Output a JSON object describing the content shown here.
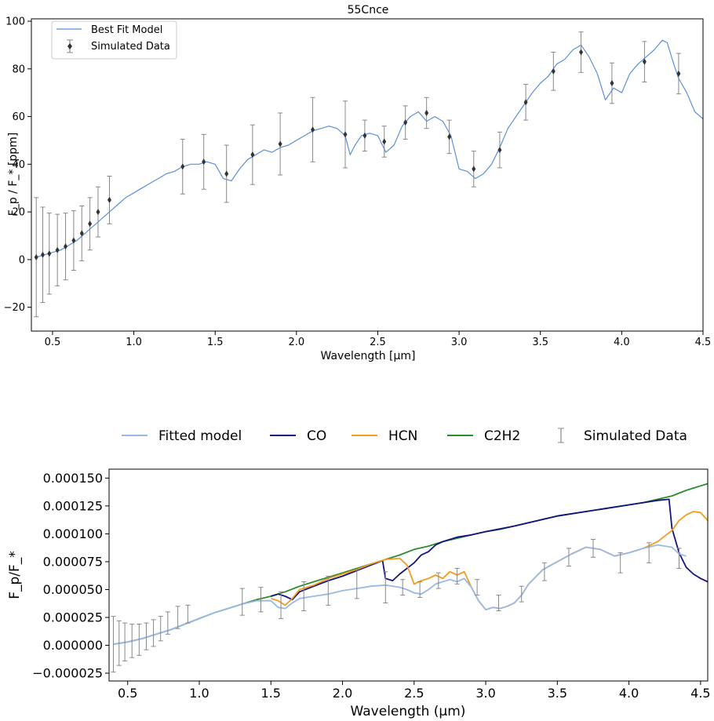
{
  "chart_data": [
    {
      "type": "line",
      "title": "55Cnce",
      "xlabel": "Wavelength [μm]",
      "ylabel": "F_p / F_* [ppm]",
      "xlim": [
        0.37,
        4.5
      ],
      "ylim": [
        -30,
        101
      ],
      "x_ticks": [
        "0.5",
        "1.0",
        "1.5",
        "2.0",
        "2.5",
        "3.0",
        "3.5",
        "4.0",
        "4.5"
      ],
      "y_ticks": [
        "−20",
        "0",
        "20",
        "40",
        "60",
        "80",
        "100"
      ],
      "legend": {
        "placement": "top-left",
        "entries": [
          "Best Fit Model",
          "Simulated Data"
        ]
      },
      "colors": {
        "model": "#5b8fd9",
        "data": "#333333",
        "errorbar": "#888888"
      },
      "series": [
        {
          "name": "Best Fit Model",
          "x": [
            0.4,
            0.45,
            0.5,
            0.55,
            0.6,
            0.65,
            0.7,
            0.75,
            0.8,
            0.85,
            0.9,
            0.95,
            1.0,
            1.05,
            1.1,
            1.15,
            1.2,
            1.25,
            1.3,
            1.35,
            1.4,
            1.45,
            1.5,
            1.55,
            1.6,
            1.65,
            1.7,
            1.75,
            1.8,
            1.85,
            1.9,
            1.95,
            2.0,
            2.05,
            2.1,
            2.15,
            2.2,
            2.25,
            2.3,
            2.33,
            2.36,
            2.4,
            2.45,
            2.5,
            2.55,
            2.6,
            2.65,
            2.7,
            2.75,
            2.8,
            2.85,
            2.9,
            2.95,
            3.0,
            3.05,
            3.1,
            3.15,
            3.2,
            3.25,
            3.3,
            3.35,
            3.4,
            3.45,
            3.5,
            3.55,
            3.6,
            3.65,
            3.7,
            3.75,
            3.8,
            3.85,
            3.9,
            3.95,
            4.0,
            4.05,
            4.1,
            4.15,
            4.2,
            4.25,
            4.28,
            4.32,
            4.35,
            4.4,
            4.45,
            4.5
          ],
          "y": [
            1,
            2,
            3,
            4,
            6,
            8,
            11,
            14,
            17,
            20,
            23,
            26,
            28,
            30,
            32,
            34,
            36,
            37,
            39,
            40,
            40,
            41,
            40,
            34,
            33,
            38,
            42,
            44,
            46,
            45,
            47,
            48,
            50,
            52,
            54,
            55,
            56,
            55,
            52,
            44,
            48,
            52,
            53,
            52,
            45,
            48,
            56,
            60,
            62,
            58,
            60,
            58,
            52,
            38,
            37,
            34,
            36,
            40,
            47,
            55,
            60,
            65,
            70,
            74,
            77,
            82,
            84,
            88,
            90,
            85,
            78,
            67,
            72,
            70,
            78,
            82,
            85,
            88,
            92,
            91,
            82,
            76,
            70,
            62,
            59
          ]
        },
        {
          "name": "Simulated Data",
          "x": [
            0.4,
            0.44,
            0.48,
            0.53,
            0.58,
            0.63,
            0.68,
            0.73,
            0.78,
            0.85,
            1.3,
            1.43,
            1.57,
            1.73,
            1.9,
            2.1,
            2.3,
            2.42,
            2.54,
            2.67,
            2.8,
            2.94,
            3.09,
            3.25,
            3.41,
            3.58,
            3.75,
            3.94,
            4.14,
            4.35
          ],
          "y": [
            1,
            2,
            2.5,
            4,
            5.5,
            8,
            11,
            15,
            20,
            25,
            39,
            41,
            36,
            44,
            48.5,
            54.5,
            52.5,
            52,
            49.5,
            57.5,
            61.5,
            51.5,
            38,
            46,
            66,
            79,
            87,
            74,
            83,
            78
          ],
          "yerr": [
            25,
            20,
            17,
            15,
            14,
            12.5,
            11.5,
            11,
            10.5,
            10,
            11.5,
            11.5,
            12,
            12.5,
            13,
            13.5,
            14,
            6.5,
            6.5,
            7,
            6.5,
            7,
            7.5,
            7.5,
            7.5,
            8,
            8.5,
            8.5,
            8.5,
            8.5
          ]
        }
      ]
    },
    {
      "type": "line",
      "title": "",
      "xlabel": "Wavelength (μm)",
      "ylabel": "F_p/F_*",
      "xlim": [
        0.37,
        4.55
      ],
      "ylim": [
        -3.2e-05,
        0.000158
      ],
      "x_ticks": [
        "0.5",
        "1.0",
        "1.5",
        "2.0",
        "2.5",
        "3.0",
        "3.5",
        "4.0",
        "4.5"
      ],
      "y_ticks": [
        "−0.000025",
        "0.000000",
        "0.000025",
        "0.000050",
        "0.000075",
        "0.000100",
        "0.000125",
        "0.000150"
      ],
      "legend": {
        "placement": "top-outside",
        "entries": [
          "Fitted model",
          "CO",
          "HCN",
          "C2H2",
          "Simulated Data"
        ]
      },
      "colors": {
        "fitted": "#9ab8e8",
        "co": "#141480",
        "hcn": "#f39c1f",
        "c2h2": "#2e8b2e",
        "errorbar": "#888888"
      },
      "series": [
        {
          "name": "C2H2",
          "x": [
            0.4,
            0.5,
            0.6,
            0.7,
            0.8,
            0.9,
            1.0,
            1.1,
            1.2,
            1.3,
            1.4,
            1.5,
            1.6,
            1.7,
            1.8,
            1.9,
            2.0,
            2.1,
            2.2,
            2.3,
            2.4,
            2.5,
            2.6,
            2.7,
            2.8,
            2.9,
            3.0,
            3.1,
            3.2,
            3.3,
            3.4,
            3.5,
            3.6,
            3.7,
            3.8,
            3.9,
            4.0,
            4.1,
            4.2,
            4.3,
            4.4,
            4.5,
            4.55
          ],
          "y": [
            1e-06,
            3e-06,
            6e-06,
            1e-05,
            1.4e-05,
            1.9e-05,
            2.4e-05,
            2.9e-05,
            3.3e-05,
            3.7e-05,
            4.1e-05,
            4.4e-05,
            4.8e-05,
            5.3e-05,
            5.7e-05,
            6.1e-05,
            6.5e-05,
            6.9e-05,
            7.3e-05,
            7.7e-05,
            8.1e-05,
            8.6e-05,
            8.9e-05,
            9.3e-05,
            9.6e-05,
            9.9e-05,
            0.000102,
            0.000104,
            0.000107,
            0.00011,
            0.000113,
            0.000116,
            0.000118,
            0.00012,
            0.000122,
            0.000124,
            0.000126,
            0.000128,
            0.000131,
            0.000134,
            0.000139,
            0.000143,
            0.000145
          ]
        },
        {
          "name": "CO",
          "x": [
            1.5,
            1.55,
            1.6,
            1.65,
            1.7,
            1.8,
            1.9,
            2.0,
            2.1,
            2.2,
            2.28,
            2.3,
            2.35,
            2.4,
            2.45,
            2.5,
            2.55,
            2.6,
            2.65,
            2.7,
            2.8,
            2.9,
            3.0,
            3.2,
            3.5,
            3.8,
            4.0,
            4.2,
            4.28,
            4.3,
            4.35,
            4.4,
            4.45,
            4.5,
            4.55
          ],
          "y": [
            4.4e-05,
            4.6e-05,
            4.4e-05,
            4.1e-05,
            4.8e-05,
            5.3e-05,
            5.8e-05,
            6.2e-05,
            6.7e-05,
            7.2e-05,
            7.6e-05,
            6e-05,
            5.8e-05,
            6.4e-05,
            6.9e-05,
            7.4e-05,
            8.1e-05,
            8.4e-05,
            9e-05,
            9.3e-05,
            9.7e-05,
            9.9e-05,
            0.000102,
            0.000107,
            0.000116,
            0.000122,
            0.000126,
            0.00013,
            0.000131,
            0.000105,
            8.3e-05,
            7e-05,
            6.4e-05,
            6e-05,
            5.7e-05
          ]
        },
        {
          "name": "HCN",
          "x": [
            1.5,
            1.55,
            1.6,
            1.65,
            1.7,
            1.8,
            1.9,
            2.0,
            2.1,
            2.2,
            2.3,
            2.4,
            2.45,
            2.5,
            2.55,
            2.6,
            2.65,
            2.7,
            2.75,
            2.8,
            2.85,
            2.9,
            2.95,
            3.0,
            3.05,
            3.1,
            3.15,
            3.2,
            3.25,
            3.3,
            3.4,
            3.5,
            3.6,
            3.7,
            3.8,
            3.9,
            4.0,
            4.1,
            4.2,
            4.3,
            4.35,
            4.4,
            4.45,
            4.5,
            4.55
          ],
          "y": [
            4.2e-05,
            4e-05,
            3.6e-05,
            4.2e-05,
            5e-05,
            5.4e-05,
            6e-05,
            6.4e-05,
            6.8e-05,
            7.3e-05,
            7.7e-05,
            7.8e-05,
            7.2e-05,
            5.5e-05,
            5.8e-05,
            6e-05,
            6.3e-05,
            6e-05,
            6.6e-05,
            6.3e-05,
            6.6e-05,
            5.2e-05,
            4e-05,
            3.2e-05,
            3.4e-05,
            3.3e-05,
            3.5e-05,
            3.8e-05,
            4.5e-05,
            5.5e-05,
            6.8e-05,
            7.5e-05,
            8.2e-05,
            8.8e-05,
            8.6e-05,
            8e-05,
            8.3e-05,
            8.7e-05,
            9.3e-05,
            0.000103,
            0.000112,
            0.000117,
            0.00012,
            0.000119,
            0.000112
          ]
        },
        {
          "name": "Fitted model",
          "x": [
            0.4,
            0.5,
            0.6,
            0.7,
            0.8,
            0.9,
            1.0,
            1.1,
            1.2,
            1.3,
            1.4,
            1.5,
            1.55,
            1.6,
            1.65,
            1.7,
            1.8,
            1.9,
            2.0,
            2.1,
            2.2,
            2.3,
            2.4,
            2.45,
            2.5,
            2.55,
            2.6,
            2.65,
            2.7,
            2.75,
            2.8,
            2.85,
            2.9,
            2.95,
            3.0,
            3.05,
            3.1,
            3.15,
            3.2,
            3.25,
            3.3,
            3.4,
            3.5,
            3.6,
            3.7,
            3.8,
            3.9,
            4.0,
            4.1,
            4.2,
            4.3,
            4.35,
            4.4
          ],
          "y": [
            1e-06,
            3e-06,
            6e-06,
            1e-05,
            1.4e-05,
            1.9e-05,
            2.4e-05,
            2.9e-05,
            3.3e-05,
            3.7e-05,
            4e-05,
            4e-05,
            3.4e-05,
            3.3e-05,
            3.8e-05,
            4.2e-05,
            4.4e-05,
            4.6e-05,
            4.9e-05,
            5.1e-05,
            5.3e-05,
            5.4e-05,
            5.2e-05,
            5e-05,
            4.7e-05,
            4.6e-05,
            5e-05,
            5.5e-05,
            5.7e-05,
            5.9e-05,
            5.7e-05,
            6e-05,
            5.2e-05,
            4e-05,
            3.2e-05,
            3.4e-05,
            3.3e-05,
            3.5e-05,
            3.8e-05,
            4.5e-05,
            5.5e-05,
            6.8e-05,
            7.5e-05,
            8.2e-05,
            8.8e-05,
            8.6e-05,
            8e-05,
            8.3e-05,
            8.7e-05,
            9e-05,
            8.8e-05,
            8.2e-05,
            8e-05
          ]
        },
        {
          "name": "Simulated Data",
          "x": [
            0.4,
            0.44,
            0.48,
            0.53,
            0.58,
            0.63,
            0.68,
            0.73,
            0.78,
            0.85,
            0.92,
            1.3,
            1.43,
            1.57,
            1.73,
            1.9,
            2.1,
            2.3,
            2.42,
            2.54,
            2.67,
            2.8,
            2.94,
            3.09,
            3.25,
            3.41,
            3.58,
            3.75,
            3.94,
            4.14,
            4.35
          ],
          "y": [
            1e-06,
            2e-06,
            3e-06,
            4e-06,
            5e-06,
            8e-06,
            1.1e-05,
            1.5e-05,
            2e-05,
            2.5e-05,
            2.8e-05,
            3.9e-05,
            4.1e-05,
            3.6e-05,
            4.4e-05,
            4.9e-05,
            5.5e-05,
            5.2e-05,
            5.2e-05,
            5e-05,
            5.8e-05,
            6.2e-05,
            5.2e-05,
            3.8e-05,
            4.6e-05,
            6.6e-05,
            7.9e-05,
            8.7e-05,
            7.4e-05,
            8.3e-05,
            7.8e-05
          ],
          "yerr": [
            2.5e-05,
            2e-05,
            1.7e-05,
            1.5e-05,
            1.4e-05,
            1.2e-05,
            1.2e-05,
            1.1e-05,
            1e-05,
            1e-05,
            8e-06,
            1.2e-05,
            1.1e-05,
            1.2e-05,
            1.3e-05,
            1.3e-05,
            1.3e-05,
            1.4e-05,
            7e-06,
            7e-06,
            7e-06,
            7e-06,
            7e-06,
            7e-06,
            7e-06,
            8e-06,
            8e-06,
            8e-06,
            9e-06,
            9e-06,
            9e-06
          ]
        }
      ]
    }
  ]
}
